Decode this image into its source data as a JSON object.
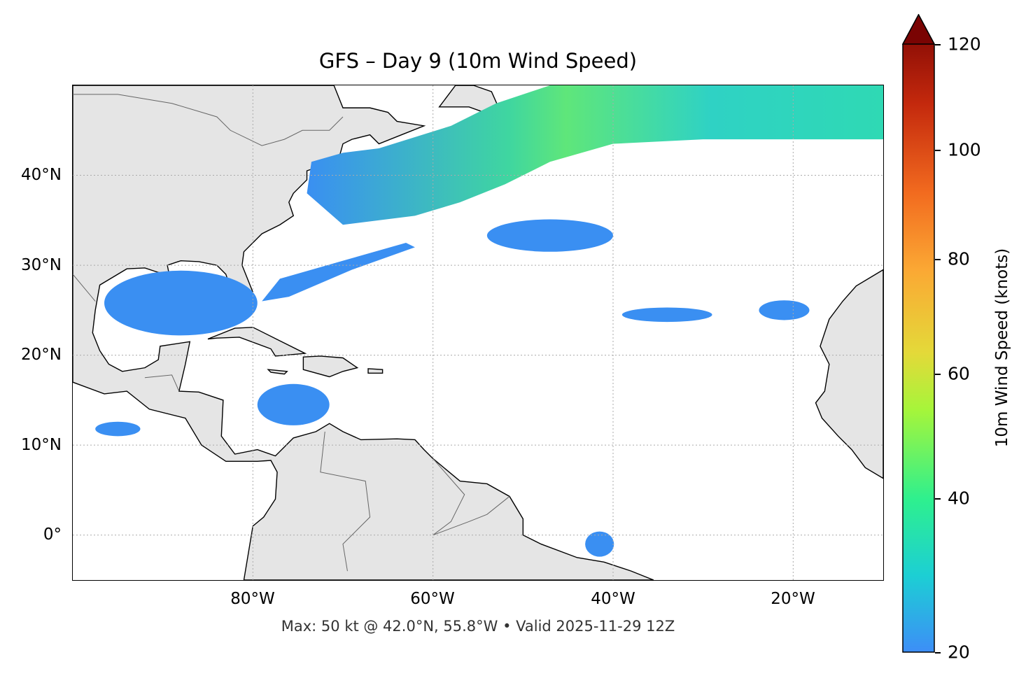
{
  "title": "GFS – Day 9 (10m Wind Speed)",
  "footer": "Max: 50 kt @ 42.0°N, 55.8°W • Valid 2025-11-29 12Z",
  "map": {
    "extent": {
      "lon_min": -100,
      "lon_max": -10,
      "lat_min": -5,
      "lat_max": 50
    },
    "land_color": "#e5e5e5",
    "ocean_color": "#ffffff",
    "lat_labels": [
      "40°N",
      "30°N",
      "20°N",
      "10°N",
      "0°"
    ],
    "lon_labels": [
      "80°W",
      "60°W",
      "40°W",
      "20°W"
    ],
    "gridlines": true
  },
  "colorbar": {
    "label": "10m Wind Speed (knots)",
    "ticks": [
      "20",
      "40",
      "60",
      "80",
      "100",
      "120"
    ],
    "min": 20,
    "max": 120,
    "extend": "max",
    "colors": [
      "#3d8ef7",
      "#1ccfd4",
      "#2ef08e",
      "#a6f53a",
      "#e4d939",
      "#fba834",
      "#f26b1f",
      "#c4290d",
      "#7a0403"
    ]
  }
}
